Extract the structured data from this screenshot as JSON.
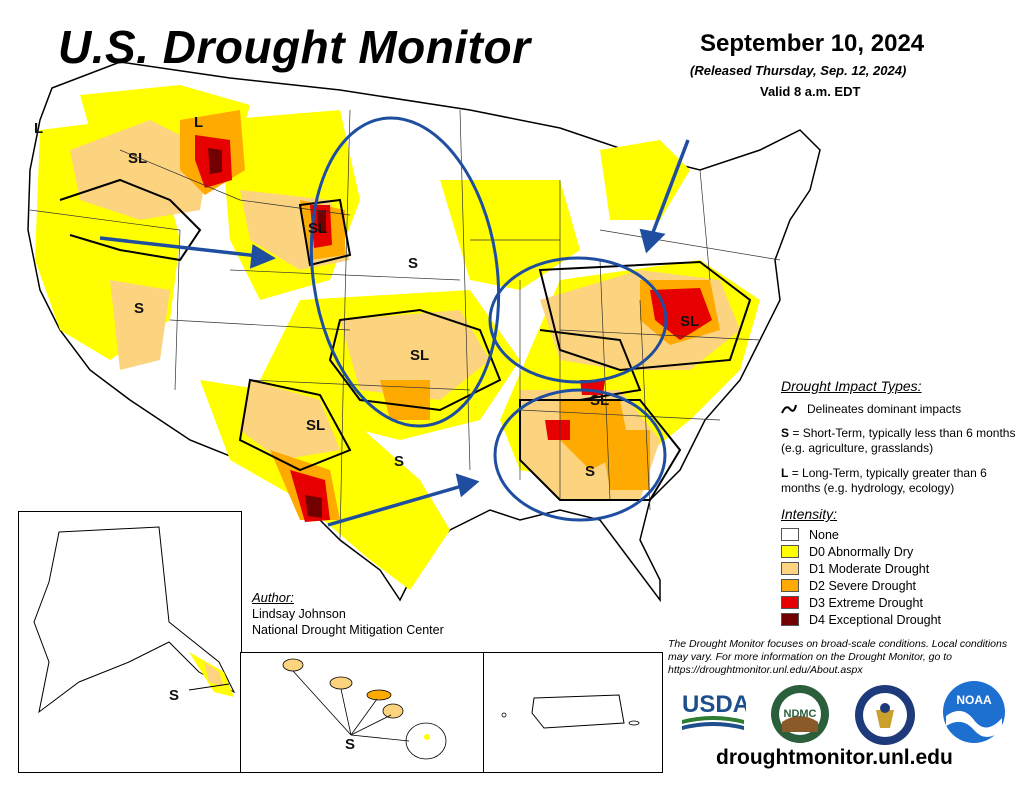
{
  "header": {
    "title": "U.S. Drought Monitor",
    "date": "September 10, 2024",
    "released": "(Released Thursday, Sep. 12, 2024)",
    "valid": "Valid 8 a.m. EDT"
  },
  "impact_legend": {
    "heading": "Drought Impact Types:",
    "delineates": "Delineates dominant impacts",
    "short_term_code": "S",
    "short_term": "= Short-Term, typically less than 6 months (e.g. agriculture, grasslands)",
    "long_term_code": "L",
    "long_term": "= Long-Term, typically greater than 6 months (e.g. hydrology, ecology)"
  },
  "intensity_legend": {
    "heading": "Intensity:",
    "items": [
      {
        "label": "None",
        "color": "#ffffff"
      },
      {
        "label": "D0 Abnormally Dry",
        "color": "#ffff00"
      },
      {
        "label": "D1 Moderate Drought",
        "color": "#fcd37f"
      },
      {
        "label": "D2 Severe Drought",
        "color": "#ffaa00"
      },
      {
        "label": "D3 Extreme Drought",
        "color": "#e60000"
      },
      {
        "label": "D4 Exceptional Drought",
        "color": "#730000"
      }
    ]
  },
  "map_labels": {
    "l_nw": "L",
    "sl_id": "SL",
    "l_mt": "L",
    "sl_wy": "SL",
    "s_nv": "S",
    "s_plains": "S",
    "sl_ks": "SL",
    "sl_nm": "SL",
    "s_tx": "S",
    "sl_oh": "SL",
    "sl_tn": "SL",
    "s_al": "S",
    "s_ak": "S",
    "s_hi": "S"
  },
  "author": {
    "heading": "Author:",
    "name": "Lindsay Johnson",
    "org": "National Drought Mitigation Center"
  },
  "footer": {
    "note": "The Drought Monitor focuses on broad-scale conditions. Local conditions may vary. For more information on the Drought Monitor, go to https://droughtmonitor.unl.edu/About.aspx",
    "website": "droughtmonitor.unl.edu"
  },
  "logos": {
    "usda": "USDA",
    "ndmc": "NDMC",
    "noaa": "NOAA"
  }
}
